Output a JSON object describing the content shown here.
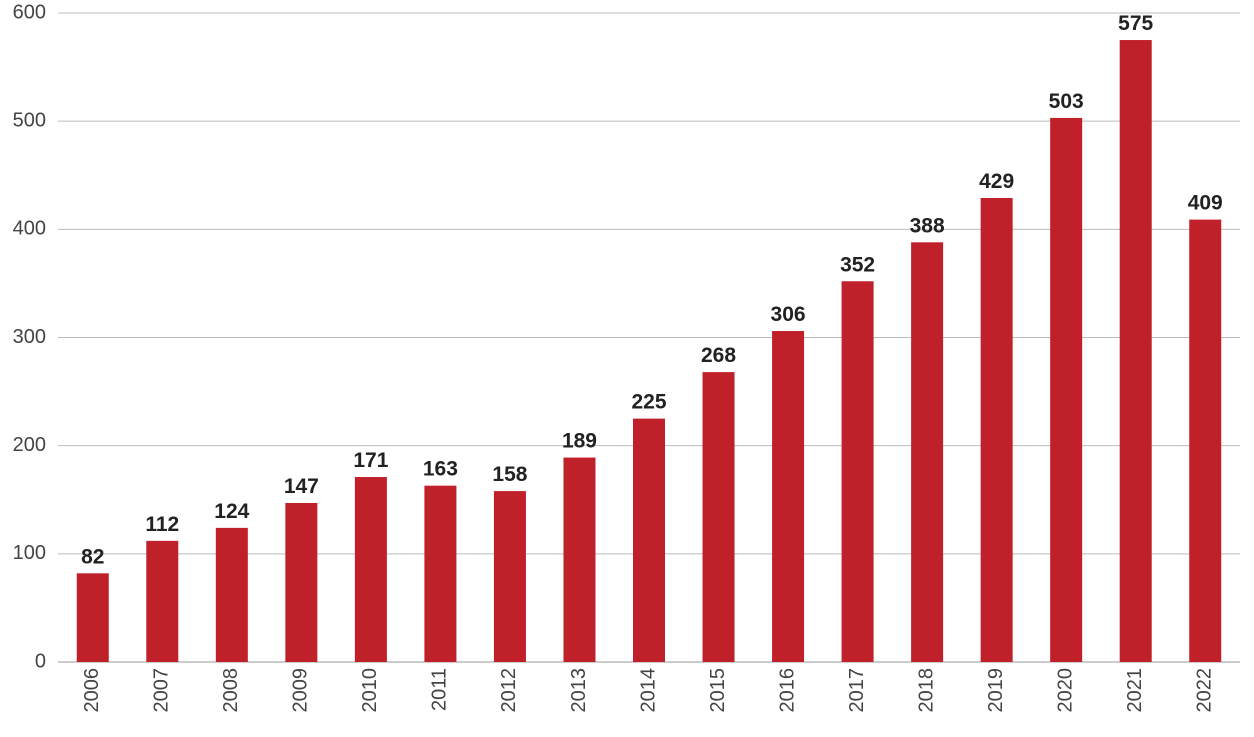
{
  "chart_data": {
    "type": "bar",
    "categories": [
      "2006",
      "2007",
      "2008",
      "2009",
      "2010",
      "2011",
      "2012",
      "2013",
      "2014",
      "2015",
      "2016",
      "2017",
      "2018",
      "2019",
      "2020",
      "2021",
      "2022"
    ],
    "values": [
      82,
      112,
      124,
      147,
      171,
      163,
      158,
      189,
      225,
      268,
      306,
      352,
      388,
      429,
      503,
      575,
      409
    ],
    "color": "#c0202a",
    "ylim": [
      0,
      600
    ],
    "yticks": [
      0,
      100,
      200,
      300,
      400,
      500,
      600
    ],
    "grid": true,
    "show_values": true
  }
}
